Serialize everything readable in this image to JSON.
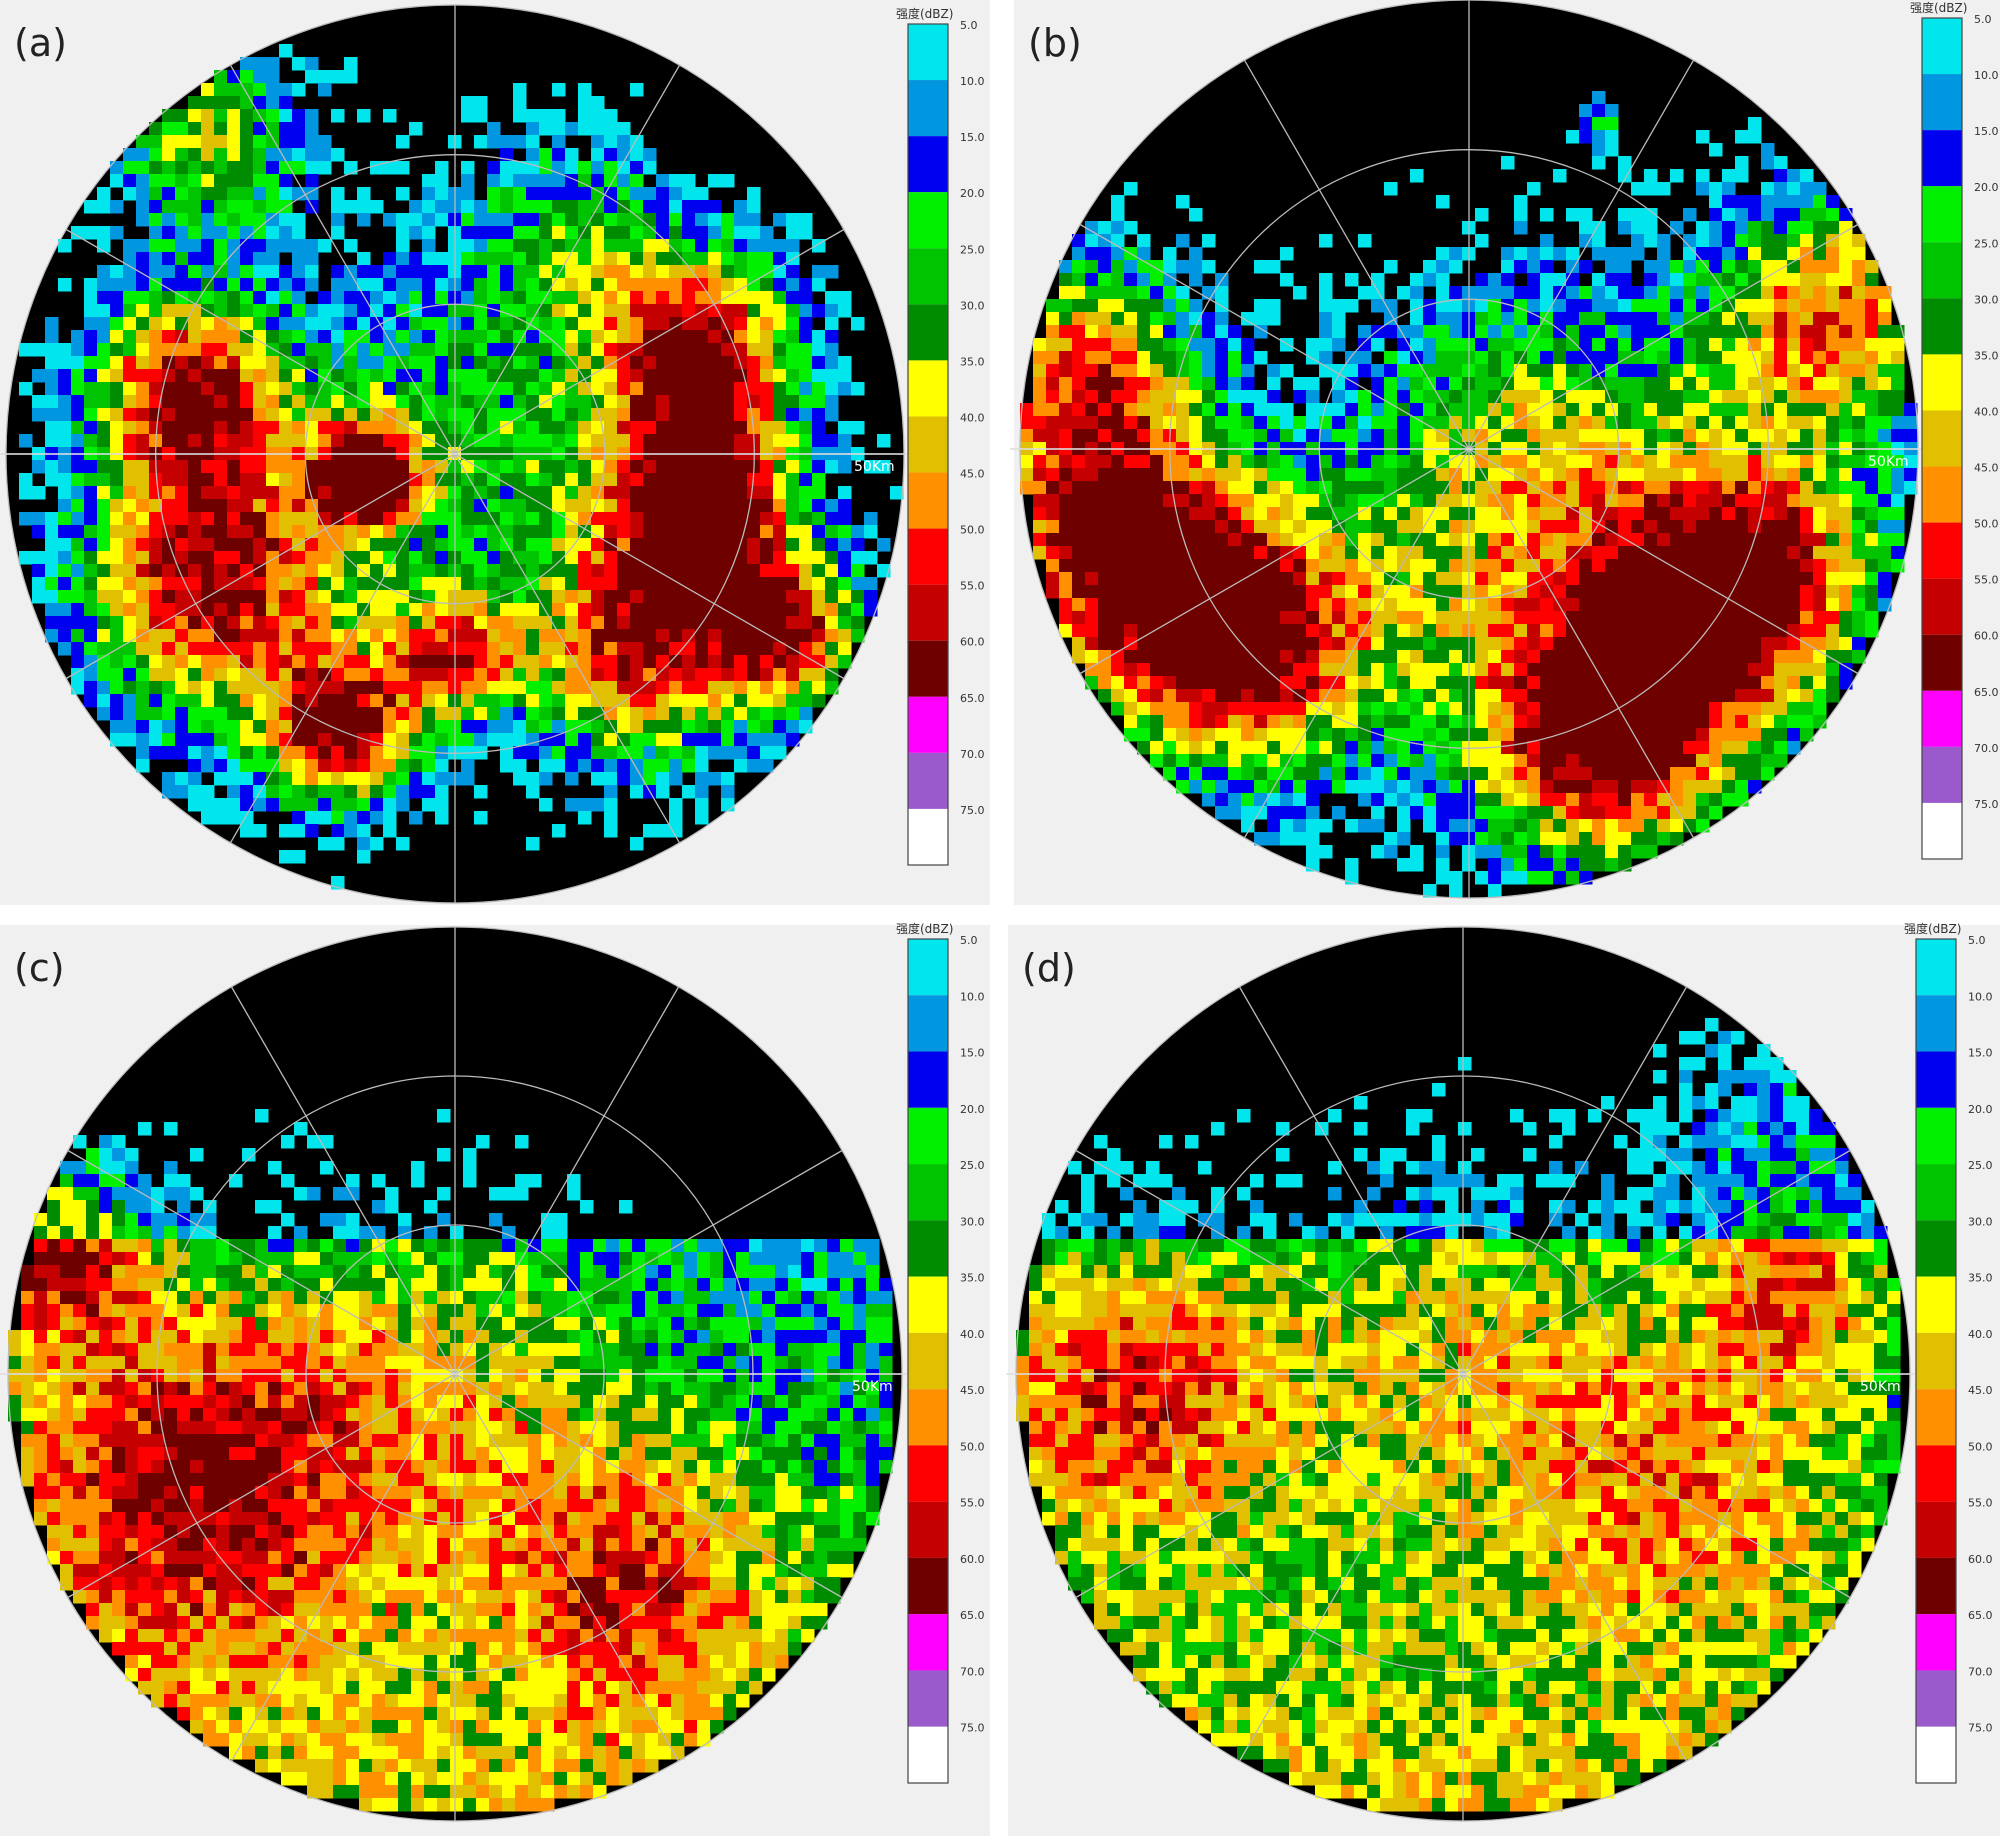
{
  "panels": [
    {
      "label": "(a)",
      "colorbar_title": "强度(dBZ)",
      "range_label": "50Km"
    },
    {
      "label": "(b)",
      "colorbar_title": "强度(dBZ)",
      "range_label": "50Km"
    },
    {
      "label": "(c)",
      "colorbar_title": "强度(dBZ)",
      "range_label": "50Km"
    },
    {
      "label": "(d)",
      "colorbar_title": "强度(dBZ)",
      "range_label": "50Km"
    }
  ],
  "colorbar": {
    "labels": [
      "5.0",
      "10.0",
      "15.0",
      "20.0",
      "25.0",
      "30.0",
      "35.0",
      "40.0",
      "45.0",
      "50.0",
      "55.0",
      "60.0",
      "65.0",
      "70.0",
      "75.0"
    ],
    "colors": [
      "#00e6ec",
      "#0096e0",
      "#0000f0",
      "#00f000",
      "#00c400",
      "#008c00",
      "#ffff00",
      "#e0c000",
      "#ff9000",
      "#ff0000",
      "#c40000",
      "#6e0000",
      "#ff00ff",
      "#9a5acc",
      "#ffffff"
    ]
  }
}
